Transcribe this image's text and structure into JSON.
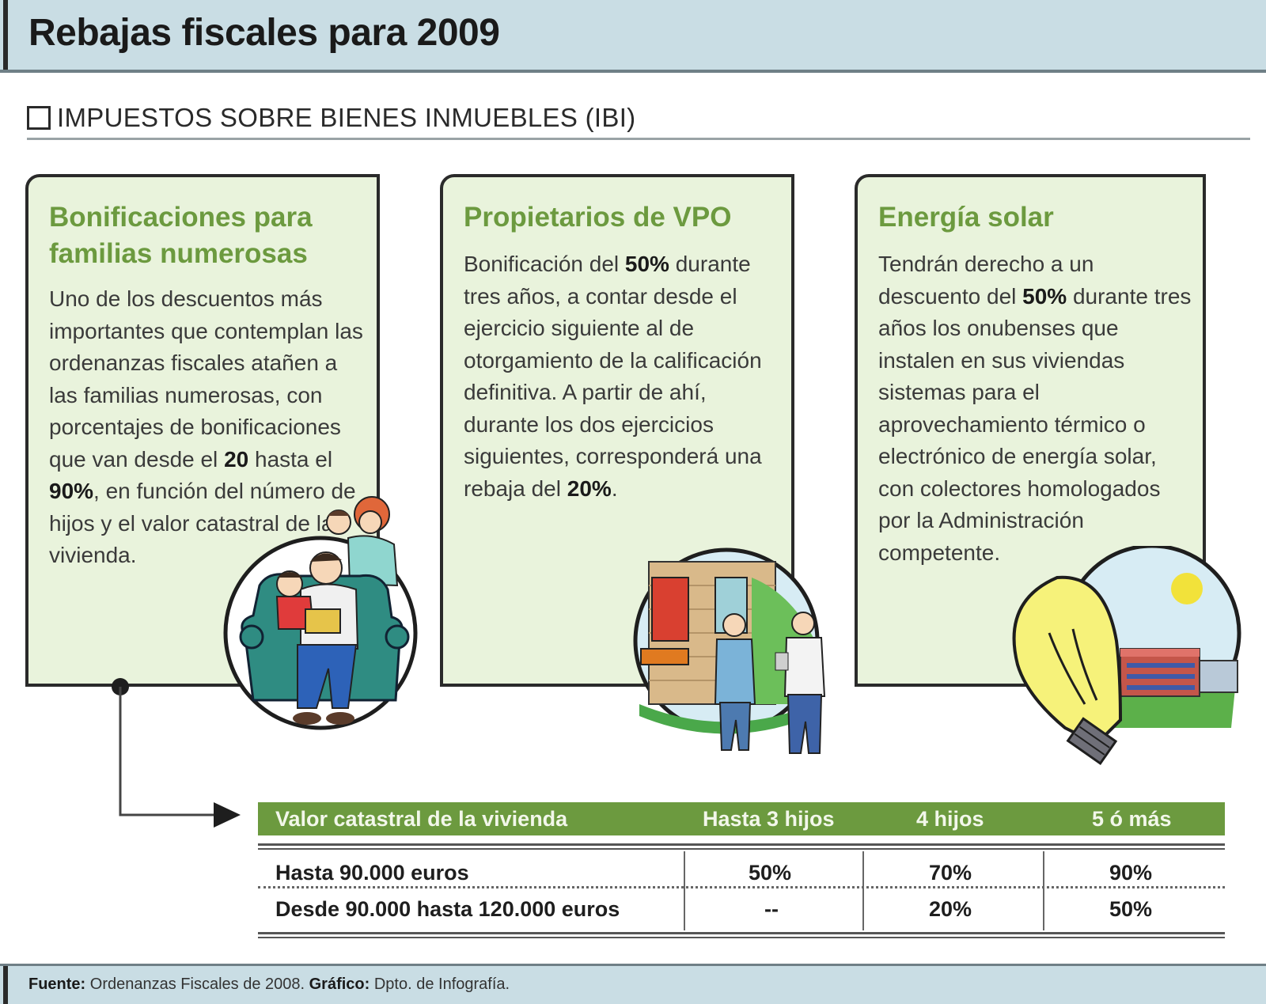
{
  "header": {
    "title": "Rebajas fiscales para 2009"
  },
  "section": {
    "label": "IMPUESTOS SOBRE BIENES INMUEBLES (IBI)"
  },
  "cards": [
    {
      "title": "Bonificaciones para familias numerosas",
      "body_before": "Uno de los descuentos más importantes que contemplan las ordenanzas fiscales atañen a las familias numerosas, con porcentajes de bonificaciones que van desde el ",
      "bold1": "20",
      "body_middle": " hasta el ",
      "bold2": "90%",
      "body_after": ", en función del número de hijos y el valor catastral de la vivienda."
    },
    {
      "title": "Propietarios de VPO",
      "body_before": "Bonificación del ",
      "bold1": "50%",
      "body_middle": " durante tres años, a contar desde el ejercicio siguiente al de otorgamiento de la calificación definitiva. A partir de ahí, durante los dos ejercicios siguientes, corresponderá una rebaja del ",
      "bold2": "20%",
      "body_after": "."
    },
    {
      "title": "Energía solar",
      "body_before": "Tendrán derecho a un descuento del ",
      "bold1": "50%",
      "body_middle": " durante tres años los onubenses que instalen en sus viviendas sistemas para el aprovechamiento térmico o electrónico de energía solar, con colectores homologados por la Administración competente.",
      "bold2": "",
      "body_after": ""
    }
  ],
  "table": {
    "headers": [
      "Valor catastral de la  vivienda",
      "Hasta 3 hijos",
      "4 hijos",
      "5 ó más"
    ],
    "rows": [
      [
        "Hasta 90.000 euros",
        "50%",
        "70%",
        "90%"
      ],
      [
        "Desde 90.000 hasta 120.000 euros",
        "--",
        "20%",
        "50%"
      ]
    ]
  },
  "footer": {
    "source_label": "Fuente:",
    "source_text": " Ordenanzas Fiscales de 2008. ",
    "graphic_label": "Gráfico:",
    "graphic_text": " Dpto. de Infografía."
  },
  "colors": {
    "header_bg": "#c9dde4",
    "card_bg": "#e9f3dc",
    "accent_green": "#6c9a3f"
  },
  "icons": [
    "checkbox-icon",
    "family-illustration",
    "vpo-housing-illustration",
    "solar-bulb-illustration",
    "arrow-connector-icon"
  ]
}
